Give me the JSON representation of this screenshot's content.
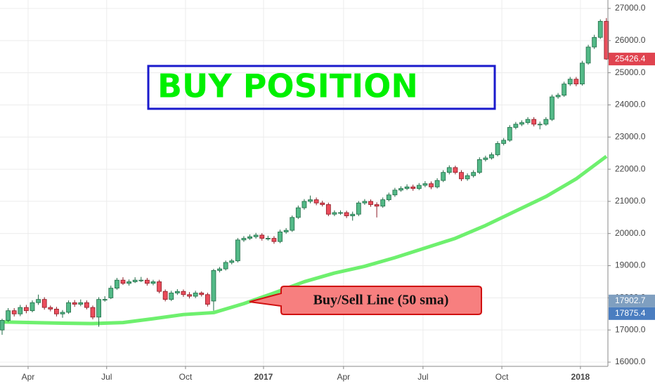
{
  "chart_data": {
    "type": "candlestick",
    "candles": [
      [
        17000,
        17350,
        16850,
        17300
      ],
      [
        17300,
        17680,
        17250,
        17600
      ],
      [
        17600,
        17680,
        17420,
        17500
      ],
      [
        17500,
        17780,
        17430,
        17700
      ],
      [
        17700,
        17780,
        17520,
        17600
      ],
      [
        17600,
        17920,
        17550,
        17850
      ],
      [
        17850,
        18100,
        17780,
        17950
      ],
      [
        17950,
        18020,
        17630,
        17700
      ],
      [
        17700,
        17760,
        17580,
        17650
      ],
      [
        17650,
        17720,
        17420,
        17500
      ],
      [
        17500,
        17620,
        17380,
        17550
      ],
      [
        17550,
        17920,
        17500,
        17850
      ],
      [
        17850,
        17930,
        17720,
        17800
      ],
      [
        17800,
        17950,
        17740,
        17850
      ],
      [
        17850,
        17920,
        17640,
        17700
      ],
      [
        17700,
        17760,
        17330,
        17400
      ],
      [
        17400,
        18020,
        17100,
        17950
      ],
      [
        17950,
        18050,
        17880,
        17950
      ],
      [
        18000,
        18380,
        17960,
        18300
      ],
      [
        18300,
        18620,
        18250,
        18550
      ],
      [
        18550,
        18640,
        18400,
        18450
      ],
      [
        18450,
        18570,
        18380,
        18500
      ],
      [
        18500,
        18640,
        18460,
        18550
      ],
      [
        18550,
        18650,
        18490,
        18550
      ],
      [
        18550,
        18620,
        18380,
        18450
      ],
      [
        18450,
        18560,
        18390,
        18500
      ],
      [
        18500,
        18560,
        18140,
        18200
      ],
      [
        18200,
        18260,
        17890,
        17950
      ],
      [
        17950,
        18220,
        17900,
        18150
      ],
      [
        18150,
        18270,
        18090,
        18200
      ],
      [
        18200,
        18260,
        18030,
        18100
      ],
      [
        18100,
        18180,
        17980,
        18050
      ],
      [
        18050,
        18220,
        17990,
        18150
      ],
      [
        18150,
        18200,
        18040,
        18100
      ],
      [
        18100,
        18160,
        17730,
        17800
      ],
      [
        17900,
        18900,
        17600,
        18850
      ],
      [
        18850,
        18960,
        18790,
        18900
      ],
      [
        18900,
        19160,
        18850,
        19100
      ],
      [
        19100,
        19210,
        19040,
        19150
      ],
      [
        19150,
        19860,
        19100,
        19800
      ],
      [
        19800,
        19920,
        19740,
        19850
      ],
      [
        19850,
        19970,
        19800,
        19900
      ],
      [
        19900,
        20020,
        19840,
        19950
      ],
      [
        19950,
        20010,
        19780,
        19850
      ],
      [
        19850,
        19930,
        19780,
        19850
      ],
      [
        19850,
        19920,
        19680,
        19750
      ],
      [
        19750,
        20120,
        19700,
        20050
      ],
      [
        20050,
        20170,
        19990,
        20100
      ],
      [
        20100,
        20560,
        20050,
        20500
      ],
      [
        20500,
        20870,
        20450,
        20800
      ],
      [
        20800,
        21070,
        20740,
        21000
      ],
      [
        21000,
        21180,
        20940,
        21050
      ],
      [
        21050,
        21120,
        20880,
        20950
      ],
      [
        20950,
        21020,
        20840,
        20900
      ],
      [
        20900,
        20960,
        20540,
        20600
      ],
      [
        20600,
        20720,
        20540,
        20650
      ],
      [
        20650,
        20720,
        20580,
        20650
      ],
      [
        20650,
        20710,
        20480,
        20550
      ],
      [
        20550,
        20680,
        20400,
        20600
      ],
      [
        20600,
        21010,
        20540,
        20950
      ],
      [
        20950,
        21070,
        20890,
        21000
      ],
      [
        21000,
        21060,
        20830,
        20900
      ],
      [
        20900,
        20970,
        20500,
        20850
      ],
      [
        20850,
        21120,
        20800,
        21050
      ],
      [
        21050,
        21270,
        21000,
        21200
      ],
      [
        21200,
        21420,
        21140,
        21350
      ],
      [
        21350,
        21470,
        21300,
        21400
      ],
      [
        21400,
        21530,
        21350,
        21450
      ],
      [
        21450,
        21520,
        21330,
        21400
      ],
      [
        21400,
        21570,
        21350,
        21500
      ],
      [
        21500,
        21630,
        21440,
        21550
      ],
      [
        21550,
        21620,
        21380,
        21450
      ],
      [
        21450,
        21720,
        21400,
        21650
      ],
      [
        21650,
        21970,
        21600,
        21900
      ],
      [
        21900,
        22120,
        21840,
        22050
      ],
      [
        22050,
        22110,
        21840,
        21900
      ],
      [
        21900,
        21970,
        21630,
        21700
      ],
      [
        21700,
        21870,
        21640,
        21800
      ],
      [
        21800,
        21970,
        21740,
        21900
      ],
      [
        21900,
        22370,
        21850,
        22300
      ],
      [
        22300,
        22420,
        22240,
        22350
      ],
      [
        22350,
        22520,
        22300,
        22450
      ],
      [
        22450,
        22870,
        22400,
        22800
      ],
      [
        22800,
        22970,
        22740,
        22900
      ],
      [
        22900,
        23370,
        22850,
        23300
      ],
      [
        23300,
        23470,
        23240,
        23400
      ],
      [
        23400,
        23520,
        23340,
        23450
      ],
      [
        23450,
        23620,
        23390,
        23550
      ],
      [
        23550,
        23620,
        23330,
        23400
      ],
      [
        23400,
        23480,
        23240,
        23400
      ],
      [
        23400,
        23620,
        23350,
        23550
      ],
      [
        23550,
        24320,
        23500,
        24250
      ],
      [
        24250,
        24370,
        24190,
        24300
      ],
      [
        24300,
        24720,
        24250,
        24650
      ],
      [
        24650,
        24870,
        24590,
        24800
      ],
      [
        24800,
        24870,
        24580,
        24650
      ],
      [
        24650,
        25370,
        24600,
        25300
      ],
      [
        25300,
        25870,
        25250,
        25800
      ],
      [
        25800,
        26180,
        25740,
        26100
      ],
      [
        26100,
        26660,
        26050,
        26600
      ],
      [
        26600,
        26700,
        25400,
        25426.4
      ]
    ],
    "sma": {
      "name": "Buy/Sell Line (50 sma)",
      "color": "#6ef06e",
      "x": [
        0,
        5,
        10,
        15,
        20,
        25,
        30,
        35,
        40,
        45,
        50,
        55,
        60,
        65,
        70,
        75,
        80,
        85,
        90,
        95,
        100
      ],
      "values": [
        17250,
        17230,
        17210,
        17200,
        17230,
        17350,
        17480,
        17540,
        17820,
        18150,
        18500,
        18770,
        18980,
        19250,
        19550,
        19850,
        20250,
        20700,
        21150,
        21700,
        22400
      ]
    },
    "xlim": [
      -0.35,
      100.25
    ],
    "xticks": [
      {
        "value": 4.3,
        "label": "Apr"
      },
      {
        "value": 17.3,
        "label": "Jul"
      },
      {
        "value": 30.35,
        "label": "Oct"
      },
      {
        "value": 43.26,
        "label": "2017"
      },
      {
        "value": 56.5,
        "label": "Apr"
      },
      {
        "value": 69.65,
        "label": "Jul"
      },
      {
        "value": 82.7,
        "label": "Oct"
      },
      {
        "value": 95.7,
        "label": "2018"
      }
    ],
    "ylim": [
      15869,
      27262
    ],
    "yticks": [
      {
        "value": 16000,
        "label": "16000.0"
      },
      {
        "value": 17000,
        "label": "17000.0"
      },
      {
        "value": 18000,
        "label": "18000.0"
      },
      {
        "value": 19000,
        "label": "19000.0"
      },
      {
        "value": 20000,
        "label": "20000.0"
      },
      {
        "value": 21000,
        "label": "21000.0"
      },
      {
        "value": 22000,
        "label": "22000.0"
      },
      {
        "value": 23000,
        "label": "23000.0"
      },
      {
        "value": 24000,
        "label": "24000.0"
      },
      {
        "value": 25000,
        "label": "25000.0"
      },
      {
        "value": 26000,
        "label": "26000.0"
      },
      {
        "value": 27000,
        "label": "27000.0"
      }
    ],
    "price_labels": [
      {
        "value": 25426.4,
        "label": "25426.4",
        "color": "#e0434f"
      },
      {
        "value": 17902.7,
        "label": "17902.7",
        "color": "#7f9fc0"
      },
      {
        "value": 17875.4,
        "label": "17875.4",
        "color": "#4a7dc0"
      }
    ],
    "up_color": "#53b987",
    "down_color": "#eb4d5c",
    "grid": true,
    "annotations": [
      "BUY POSITION"
    ]
  }
}
